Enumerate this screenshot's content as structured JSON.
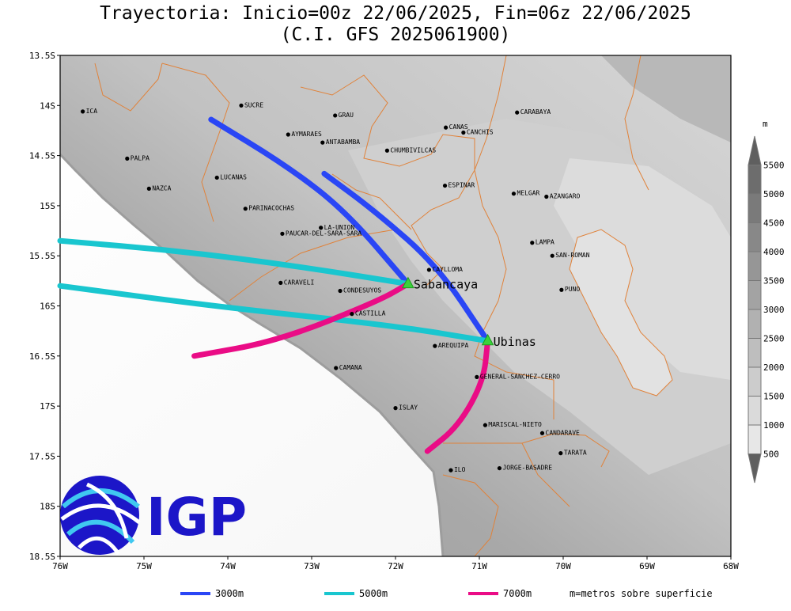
{
  "title": {
    "line1": "Trayectoria: Inicio=00z 22/06/2025, Fin=06z 22/06/2025",
    "line2": "(C.I. GFS 2025061900)"
  },
  "axes": {
    "x_labels": [
      "76W",
      "75W",
      "74W",
      "73W",
      "72W",
      "71W",
      "70W",
      "69W",
      "68W"
    ],
    "y_labels": [
      "13.5S",
      "14S",
      "14.5S",
      "15S",
      "15.5S",
      "16S",
      "16.5S",
      "17S",
      "17.5S",
      "18S",
      "18.5S"
    ]
  },
  "places": [
    {
      "name": "ICA",
      "lon": -75.73,
      "lat": -14.06
    },
    {
      "name": "SUCRE",
      "lon": -73.84,
      "lat": -14.0
    },
    {
      "name": "GRAU",
      "lon": -72.72,
      "lat": -14.1
    },
    {
      "name": "CARABAYA",
      "lon": -70.55,
      "lat": -14.07
    },
    {
      "name": "CANAS",
      "lon": -71.4,
      "lat": -14.22
    },
    {
      "name": "CANCHIS",
      "lon": -71.19,
      "lat": -14.27
    },
    {
      "name": "AYMARAES",
      "lon": -73.28,
      "lat": -14.29
    },
    {
      "name": "ANTABAMBA",
      "lon": -72.87,
      "lat": -14.37
    },
    {
      "name": "CHUMBIVILCAS",
      "lon": -72.1,
      "lat": -14.45
    },
    {
      "name": "PALPA",
      "lon": -75.2,
      "lat": -14.53
    },
    {
      "name": "LUCANAS",
      "lon": -74.13,
      "lat": -14.72
    },
    {
      "name": "ESPINAR",
      "lon": -71.41,
      "lat": -14.8
    },
    {
      "name": "NAZCA",
      "lon": -74.94,
      "lat": -14.83
    },
    {
      "name": "MELGAR",
      "lon": -70.59,
      "lat": -14.88
    },
    {
      "name": "AZANGARO",
      "lon": -70.2,
      "lat": -14.91
    },
    {
      "name": "PARINACOCHAS",
      "lon": -73.79,
      "lat": -15.03
    },
    {
      "name": "LA-UNION",
      "lon": -72.89,
      "lat": -15.22
    },
    {
      "name": "PAUCAR-DEL-SARA-SARA",
      "lon": -73.35,
      "lat": -15.28
    },
    {
      "name": "LAMPA",
      "lon": -70.37,
      "lat": -15.37
    },
    {
      "name": "SAN-ROMAN",
      "lon": -70.13,
      "lat": -15.5
    },
    {
      "name": "CAYLLOMA",
      "lon": -71.6,
      "lat": -15.64
    },
    {
      "name": "CARAVELI",
      "lon": -73.37,
      "lat": -15.77
    },
    {
      "name": "CONDESUYOS",
      "lon": -72.66,
      "lat": -15.85
    },
    {
      "name": "PUNO",
      "lon": -70.02,
      "lat": -15.84
    },
    {
      "name": "CASTILLA",
      "lon": -72.52,
      "lat": -16.08
    },
    {
      "name": "AREQUIPA",
      "lon": -71.53,
      "lat": -16.4
    },
    {
      "name": "CAMANA",
      "lon": -72.71,
      "lat": -16.62
    },
    {
      "name": "GENERAL-SANCHEZ-CERRO",
      "lon": -71.03,
      "lat": -16.71
    },
    {
      "name": "ISLAY",
      "lon": -72.0,
      "lat": -17.02
    },
    {
      "name": "MARISCAL-NIETO",
      "lon": -70.93,
      "lat": -17.19
    },
    {
      "name": "CANDARAVE",
      "lon": -70.25,
      "lat": -17.27
    },
    {
      "name": "TARATA",
      "lon": -70.03,
      "lat": -17.47
    },
    {
      "name": "ILO",
      "lon": -71.34,
      "lat": -17.64
    },
    {
      "name": "JORGE-BASADRE",
      "lon": -70.76,
      "lat": -17.62
    }
  ],
  "volcanoes": [
    {
      "name": "Sabancaya",
      "lon": -71.85,
      "lat": -15.78
    },
    {
      "name": "Ubinas",
      "lon": -70.9,
      "lat": -16.35
    }
  ],
  "trajectories": [
    {
      "label": "3000m",
      "color": "#2a46f5",
      "path": [
        [
          -71.85,
          -15.78
        ],
        [
          -72.6,
          -15.05
        ],
        [
          -73.3,
          -14.6
        ],
        [
          -74.2,
          -14.14
        ]
      ]
    },
    {
      "label": "3000m",
      "color": "#2a46f5",
      "path": [
        [
          -70.9,
          -16.35
        ],
        [
          -71.5,
          -15.6
        ],
        [
          -72.25,
          -15.05
        ],
        [
          -72.85,
          -14.68
        ]
      ]
    },
    {
      "label": "5000m",
      "color": "#19c6cf",
      "path": [
        [
          -71.85,
          -15.78
        ],
        [
          -73.2,
          -15.6
        ],
        [
          -74.6,
          -15.45
        ],
        [
          -76.0,
          -15.35
        ]
      ]
    },
    {
      "label": "5000m",
      "color": "#19c6cf",
      "path": [
        [
          -70.9,
          -16.35
        ],
        [
          -72.0,
          -16.2
        ],
        [
          -74.2,
          -16.0
        ],
        [
          -76.0,
          -15.8
        ]
      ]
    },
    {
      "label": "7000m",
      "color": "#ea0c86",
      "path": [
        [
          -71.85,
          -15.78
        ],
        [
          -72.2,
          -15.95
        ],
        [
          -73.4,
          -16.35
        ],
        [
          -74.4,
          -16.5
        ]
      ]
    },
    {
      "label": "7000m",
      "color": "#ea0c86",
      "path": [
        [
          -70.9,
          -16.35
        ],
        [
          -70.95,
          -16.75
        ],
        [
          -71.25,
          -17.2
        ],
        [
          -71.62,
          -17.45
        ]
      ]
    }
  ],
  "colorbar": {
    "unit": "m",
    "labels": [
      "500",
      "1000",
      "1500",
      "2000",
      "2500",
      "3000",
      "3500",
      "4000",
      "4500",
      "5000",
      "5500"
    ]
  },
  "legend": {
    "items": [
      {
        "label": "3000m",
        "color": "#2a46f5"
      },
      {
        "label": "5000m",
        "color": "#19c6cf"
      },
      {
        "label": "7000m",
        "color": "#ea0c86"
      }
    ],
    "note": "m=metros sobre superficie"
  },
  "logo": {
    "text": "IGP",
    "color": "#1c16c8"
  }
}
